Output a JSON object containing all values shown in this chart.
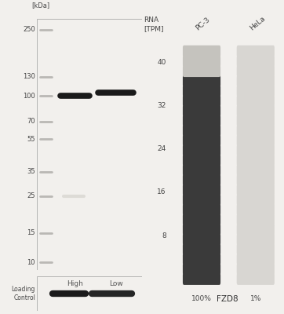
{
  "kda_labels": [
    "250",
    "130",
    "100",
    "70",
    "55",
    "35",
    "25",
    "15",
    "10"
  ],
  "kda_values": [
    250,
    130,
    100,
    70,
    55,
    35,
    25,
    15,
    10
  ],
  "bg_color": "#f2f0ed",
  "wb_bg": "#f0ede8",
  "title_pc3": "PC-3",
  "title_hela": "HeLa",
  "xlabel_high": "High",
  "xlabel_low": "Low",
  "loading_control_label": "Loading\nControl",
  "rna_title": "RNA\n[TPM]",
  "rna_pc3_label": "PC-3",
  "rna_hela_label": "HeLa",
  "rna_pc3_pct": "100%",
  "rna_hela_pct": "1%",
  "rna_gene": "FZD8",
  "rna_yticks": [
    8,
    16,
    24,
    32,
    40
  ],
  "n_rna_bars": 24,
  "pc3_dark_color": "#3a3a3a",
  "pc3_light_color": "#c5c3be",
  "hela_color": "#d8d6d2",
  "ladder_color": "#b0aeaa",
  "band_dark": "#1a1a1a",
  "lc_bg": "#dedad5"
}
